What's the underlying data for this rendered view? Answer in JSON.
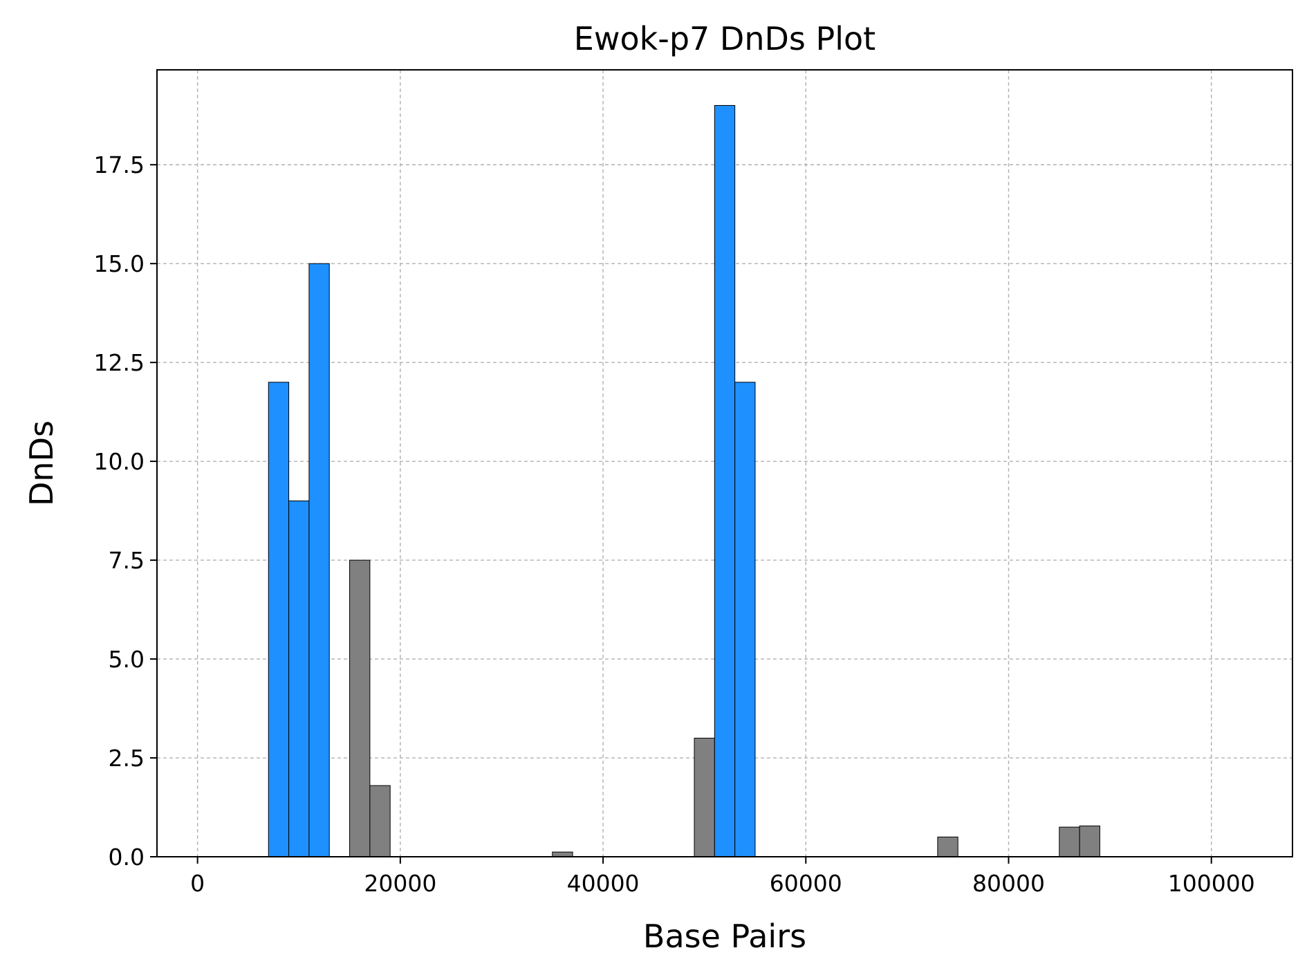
{
  "chart_data": {
    "type": "bar",
    "title": "Ewok-p7 DnDs Plot",
    "xlabel": "Base Pairs",
    "ylabel": "DnDs",
    "xlim": [
      -4000,
      108000
    ],
    "ylim": [
      0,
      19.9
    ],
    "xticks": [
      0,
      20000,
      40000,
      60000,
      80000,
      100000
    ],
    "xtick_labels": [
      "0",
      "20000",
      "40000",
      "60000",
      "80000",
      "100000"
    ],
    "yticks": [
      0,
      2.5,
      5,
      7.5,
      10,
      12.5,
      15,
      17.5
    ],
    "ytick_labels": [
      "0.0",
      "2.5",
      "5.0",
      "7.5",
      "10.0",
      "12.5",
      "15.0",
      "17.5"
    ],
    "bin_width": 2000,
    "grid": true,
    "colors": {
      "highlight": "#1e90ff",
      "normal": "#808080"
    },
    "bars": [
      {
        "x_start": 7000,
        "value": 12,
        "color": "highlight"
      },
      {
        "x_start": 9000,
        "value": 9,
        "color": "highlight"
      },
      {
        "x_start": 11000,
        "value": 15,
        "color": "highlight"
      },
      {
        "x_start": 15000,
        "value": 7.5,
        "color": "normal"
      },
      {
        "x_start": 17000,
        "value": 1.8,
        "color": "normal"
      },
      {
        "x_start": 35000,
        "value": 0.12,
        "color": "normal"
      },
      {
        "x_start": 49000,
        "value": 3,
        "color": "normal"
      },
      {
        "x_start": 51000,
        "value": 19,
        "color": "highlight"
      },
      {
        "x_start": 53000,
        "value": 12,
        "color": "highlight"
      },
      {
        "x_start": 73000,
        "value": 0.5,
        "color": "normal"
      },
      {
        "x_start": 85000,
        "value": 0.75,
        "color": "normal"
      },
      {
        "x_start": 87000,
        "value": 0.78,
        "color": "normal"
      }
    ]
  }
}
